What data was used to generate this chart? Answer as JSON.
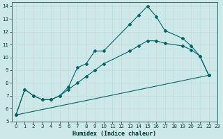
{
  "xlabel": "Humidex (Indice chaleur)",
  "background_color": "#cce8e8",
  "grid_color": "#aacccc",
  "line_color": "#006666",
  "xlim": [
    -0.5,
    23
  ],
  "ylim": [
    5,
    14.3
  ],
  "xticks": [
    0,
    1,
    2,
    3,
    4,
    5,
    6,
    7,
    8,
    9,
    10,
    11,
    12,
    13,
    14,
    15,
    16,
    17,
    18,
    19,
    20,
    21,
    22,
    23
  ],
  "yticks": [
    5,
    6,
    7,
    8,
    9,
    10,
    11,
    12,
    13,
    14
  ],
  "line1_x": [
    0,
    1,
    2,
    3,
    4,
    5,
    6,
    7,
    8,
    9,
    10,
    13,
    14,
    15,
    16,
    17,
    19,
    20,
    21,
    22
  ],
  "line1_y": [
    5.5,
    7.5,
    7.0,
    6.7,
    6.7,
    7.0,
    7.7,
    9.2,
    9.5,
    10.5,
    10.5,
    12.6,
    13.3,
    14.0,
    13.2,
    12.1,
    11.5,
    10.9,
    10.1,
    8.6
  ],
  "line2_x": [
    0,
    1,
    2,
    3,
    4,
    5,
    6,
    7,
    8,
    9,
    10,
    13,
    14,
    15,
    16,
    17,
    19,
    20,
    21,
    22
  ],
  "line2_y": [
    5.5,
    7.5,
    7.0,
    6.7,
    6.7,
    7.0,
    7.5,
    8.0,
    8.5,
    9.0,
    9.5,
    10.5,
    10.9,
    11.3,
    11.3,
    11.1,
    10.9,
    10.6,
    10.1,
    8.6
  ],
  "line3_x": [
    0,
    22
  ],
  "line3_y": [
    5.5,
    8.6
  ]
}
